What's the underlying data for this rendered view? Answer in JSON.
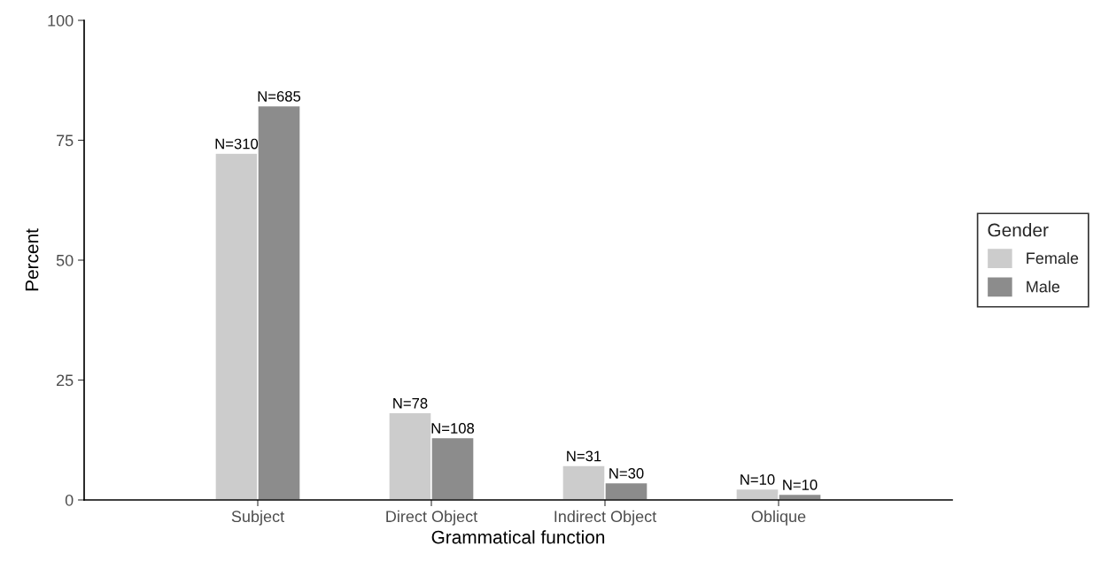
{
  "chart_data": {
    "type": "bar",
    "xlabel": "Grammatical function",
    "ylabel": "Percent",
    "legend_title": "Gender",
    "categories": [
      "Subject",
      "Direct Object",
      "Indirect Object",
      "Oblique"
    ],
    "series": [
      {
        "name": "Female",
        "color": "#cccccc",
        "values": [
          72.3,
          18.2,
          7.2,
          2.3
        ]
      },
      {
        "name": "Male",
        "color": "#8c8c8c",
        "values": [
          82.2,
          13.0,
          3.6,
          1.2
        ]
      }
    ],
    "annotations": [
      {
        "text": "N=310",
        "x": "Subject",
        "y": 72.3
      },
      {
        "text": "N=78",
        "x": "Direct Object",
        "y": 18.2
      },
      {
        "text": "N=31",
        "x": "Indirect Object",
        "y": 7.2
      },
      {
        "text": "N=10",
        "x": "Oblique",
        "y": 2.3
      },
      {
        "text": "N=685",
        "x": "Subject",
        "y": 82.2
      },
      {
        "text": "N=108",
        "x": "Direct Object",
        "y": 13.0
      },
      {
        "text": "N=30",
        "x": "Indirect Object",
        "y": 3.6
      },
      {
        "text": "N=10",
        "x": "Oblique",
        "y": 1.2
      }
    ],
    "ylim": [
      0,
      100
    ],
    "yticks": [
      0,
      25,
      50,
      75,
      100
    ],
    "grid": false,
    "legend": "right"
  }
}
